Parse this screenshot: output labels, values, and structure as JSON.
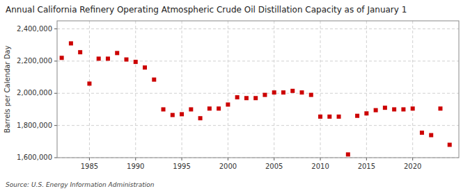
{
  "chart_data": {
    "type": "scatter",
    "title": "Annual California Refinery Operating Atmospheric Crude Oil Distillation Capacity as of January 1",
    "y_label": "Barrels per Calendar Day",
    "annotations": [
      "Source: U.S. Energy Information Administration"
    ],
    "x": [
      1982,
      1983,
      1984,
      1985,
      1986,
      1987,
      1988,
      1989,
      1990,
      1991,
      1992,
      1993,
      1994,
      1995,
      1996,
      1997,
      1998,
      1999,
      2000,
      2001,
      2002,
      2003,
      2004,
      2005,
      2006,
      2007,
      2008,
      2009,
      2010,
      2011,
      2012,
      2013,
      2014,
      2015,
      2016,
      2017,
      2018,
      2019,
      2020,
      2021,
      2022,
      2023,
      2024
    ],
    "values": [
      2220000,
      2310000,
      2255000,
      2060000,
      2215000,
      2215000,
      2250000,
      2210000,
      2195000,
      2160000,
      2085000,
      1900000,
      1865000,
      1870000,
      1900000,
      1845000,
      1905000,
      1905000,
      1930000,
      1975000,
      1970000,
      1970000,
      1990000,
      2005000,
      2005000,
      2015000,
      2005000,
      1990000,
      1855000,
      1855000,
      1855000,
      1620000,
      1860000,
      1875000,
      1895000,
      1910000,
      1900000,
      1900000,
      1905000,
      1755000,
      1740000,
      1905000,
      1680000
    ],
    "color": "#cc0000",
    "marker": "square",
    "xlim": [
      1981.5,
      2025
    ],
    "ylim": [
      1600000,
      2450000
    ],
    "xticks": [
      1985,
      1990,
      1995,
      2000,
      2005,
      2010,
      2015,
      2020
    ],
    "yticks": [
      {
        "value": 1600000,
        "label": "1,600,000"
      },
      {
        "value": 1800000,
        "label": "1,800,000"
      },
      {
        "value": 2000000,
        "label": "2,000,000"
      },
      {
        "value": 2200000,
        "label": "2,200,000"
      },
      {
        "value": 2400000,
        "label": "2,400,000"
      }
    ],
    "grid": true
  }
}
